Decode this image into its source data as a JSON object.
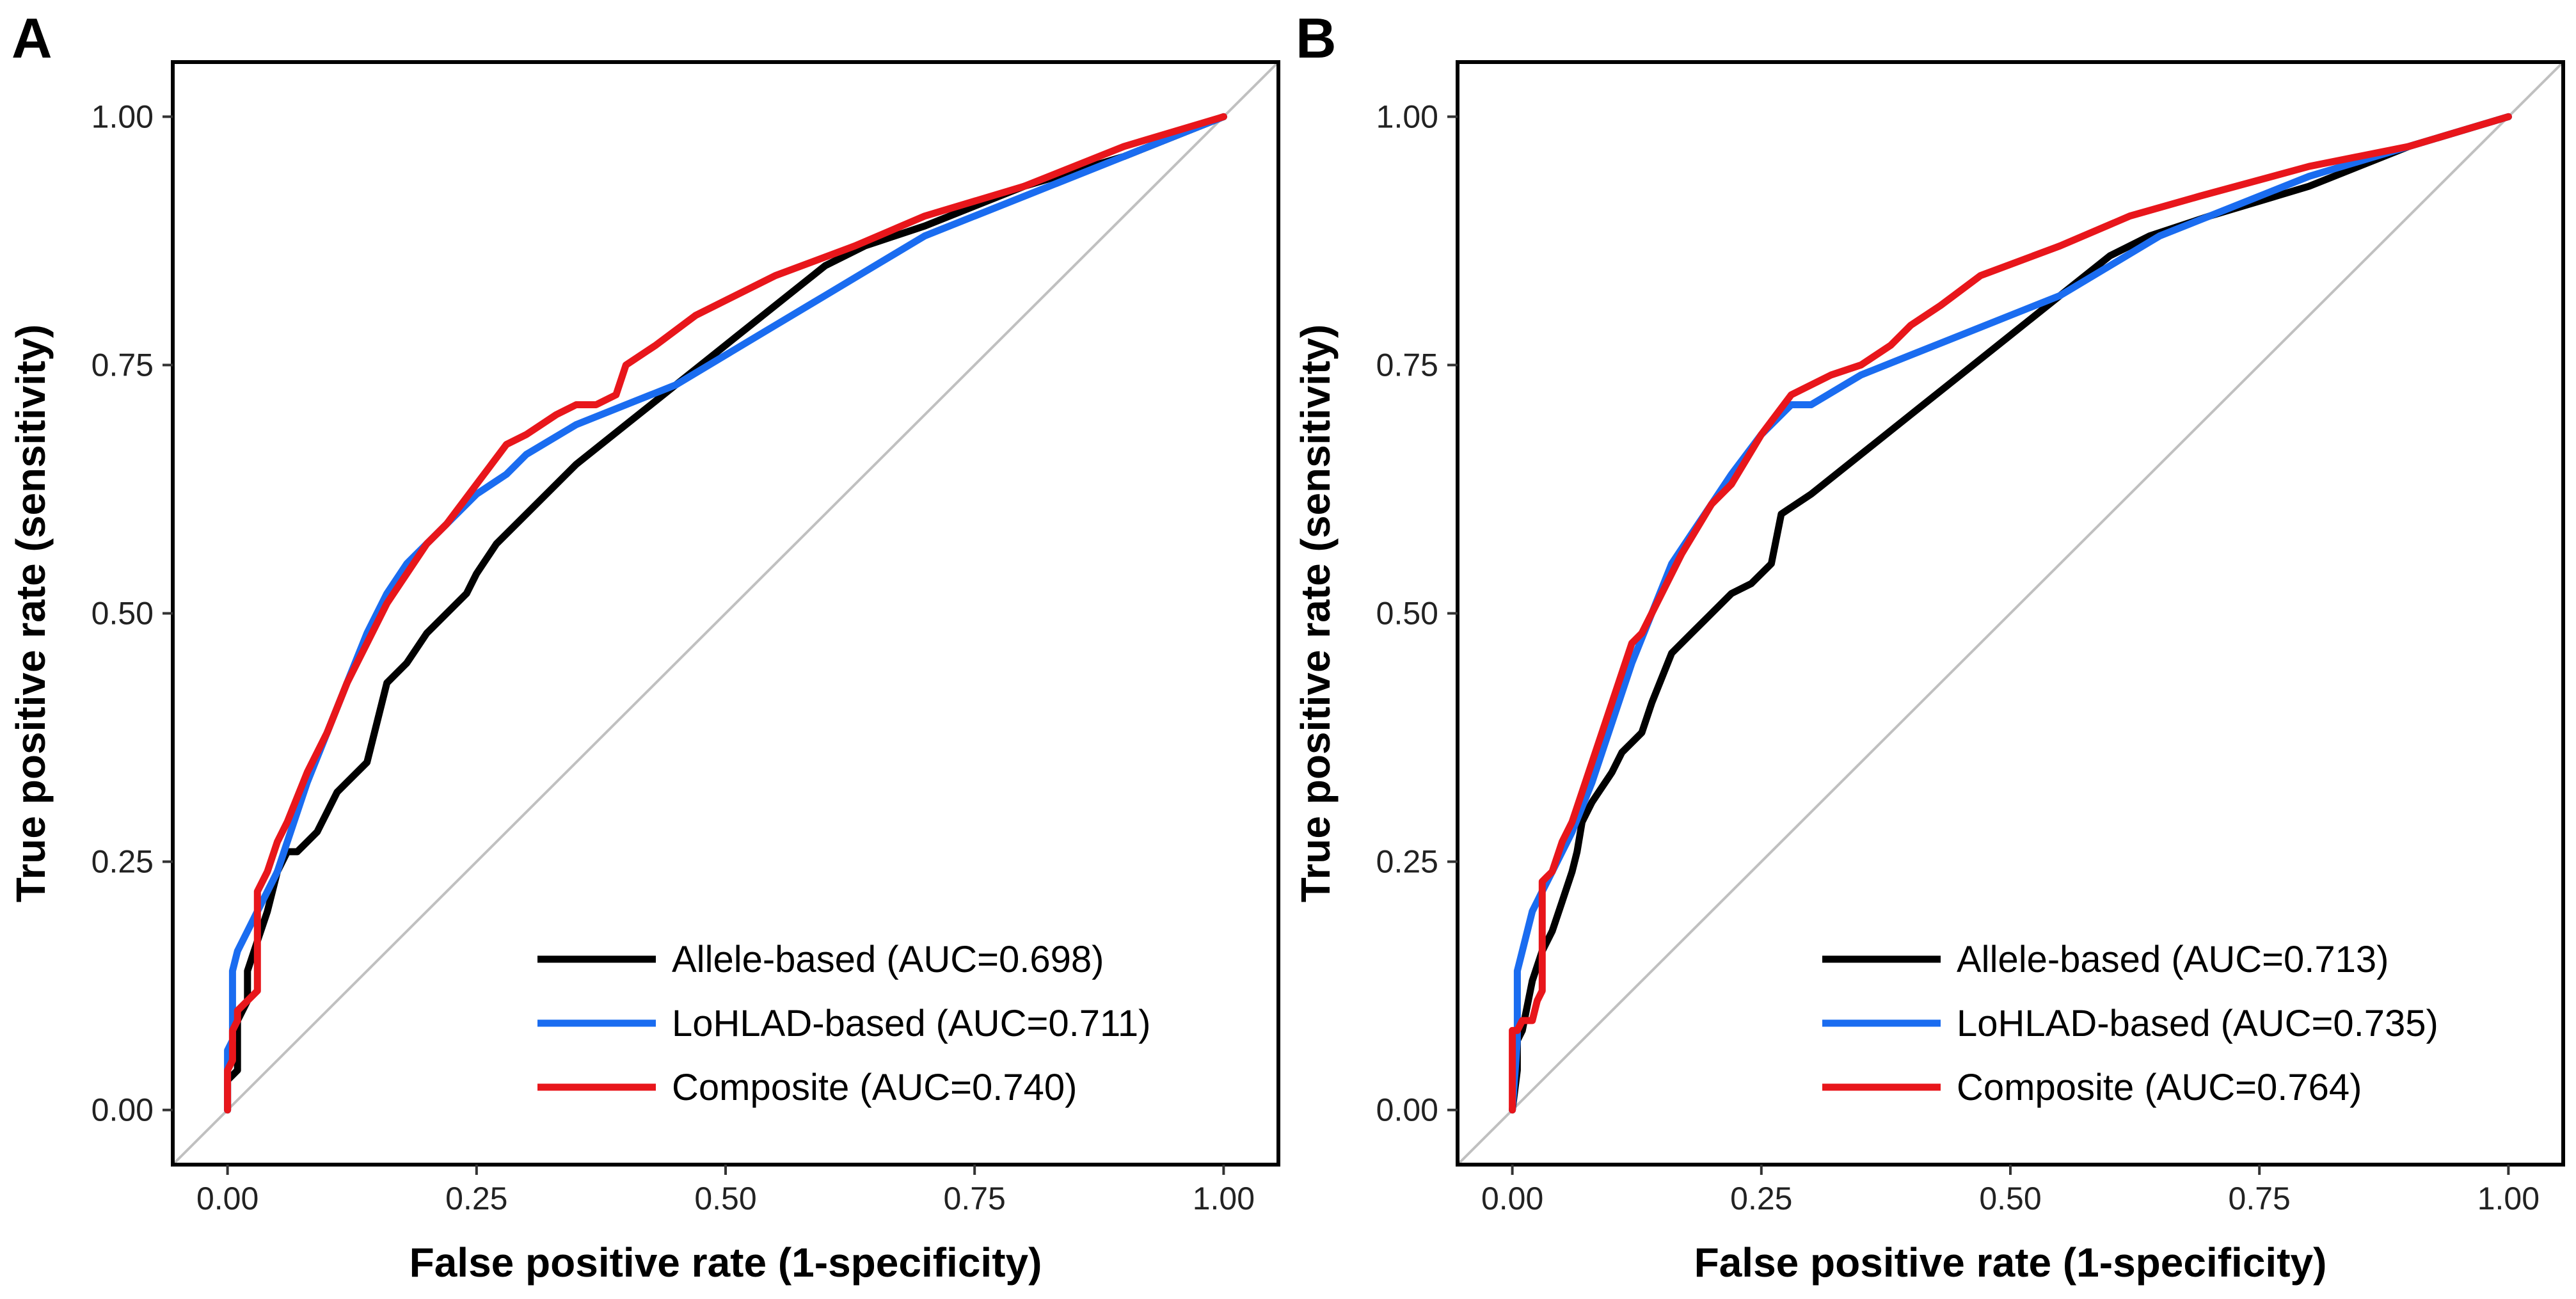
{
  "colors": {
    "allele": "#000000",
    "lohlad": "#1a6cf0",
    "composite": "#e8161b",
    "diagonal": "#c0c0c0",
    "frame": "#000000"
  },
  "chart_data": [
    {
      "panel": "A",
      "type": "line",
      "xlabel": "False positive rate (1-specificity)",
      "ylabel": "True positive rate (sensitivity)",
      "xlim": [
        -0.055,
        1.055
      ],
      "ylim": [
        -0.055,
        1.055
      ],
      "xticks": [
        "0.00",
        "0.25",
        "0.50",
        "0.75",
        "1.00"
      ],
      "yticks": [
        "0.00",
        "0.25",
        "0.50",
        "0.75",
        "1.00"
      ],
      "legend_position": "bottom-right",
      "reference_line": "diagonal",
      "series": [
        {
          "name": "Allele-based (AUC=0.698)",
          "color_key": "allele",
          "x": [
            0,
            0,
            0.01,
            0.01,
            0.02,
            0.02,
            0.03,
            0.04,
            0.05,
            0.06,
            0.07,
            0.08,
            0.09,
            0.1,
            0.11,
            0.12,
            0.14,
            0.16,
            0.18,
            0.2,
            0.22,
            0.24,
            0.25,
            0.27,
            0.3,
            0.35,
            0.4,
            0.45,
            0.5,
            0.55,
            0.6,
            0.64,
            0.7,
            0.8,
            0.9,
            1.0
          ],
          "y": [
            0,
            0.03,
            0.04,
            0.09,
            0.11,
            0.14,
            0.17,
            0.2,
            0.24,
            0.26,
            0.26,
            0.27,
            0.28,
            0.3,
            0.32,
            0.33,
            0.35,
            0.43,
            0.45,
            0.48,
            0.5,
            0.52,
            0.54,
            0.57,
            0.6,
            0.65,
            0.69,
            0.73,
            0.77,
            0.81,
            0.85,
            0.87,
            0.89,
            0.93,
            0.96,
            1.0
          ]
        },
        {
          "name": "LoHLAD-based (AUC=0.711)",
          "color_key": "lohlad",
          "x": [
            0,
            0,
            0.005,
            0.005,
            0.01,
            0.02,
            0.03,
            0.04,
            0.05,
            0.06,
            0.08,
            0.1,
            0.12,
            0.14,
            0.16,
            0.18,
            0.2,
            0.22,
            0.25,
            0.28,
            0.3,
            0.35,
            0.4,
            0.45,
            0.5,
            0.55,
            0.6,
            0.65,
            0.7,
            0.8,
            0.9,
            1.0
          ],
          "y": [
            0,
            0.06,
            0.07,
            0.14,
            0.16,
            0.18,
            0.2,
            0.22,
            0.24,
            0.27,
            0.33,
            0.38,
            0.43,
            0.48,
            0.52,
            0.55,
            0.57,
            0.59,
            0.62,
            0.64,
            0.66,
            0.69,
            0.71,
            0.73,
            0.76,
            0.79,
            0.82,
            0.85,
            0.88,
            0.92,
            0.96,
            1.0
          ]
        },
        {
          "name": "Composite (AUC=0.740)",
          "color_key": "composite",
          "x": [
            0,
            0,
            0.005,
            0.005,
            0.01,
            0.01,
            0.02,
            0.03,
            0.03,
            0.04,
            0.05,
            0.06,
            0.08,
            0.1,
            0.12,
            0.14,
            0.16,
            0.18,
            0.2,
            0.22,
            0.25,
            0.28,
            0.3,
            0.33,
            0.35,
            0.37,
            0.39,
            0.4,
            0.43,
            0.47,
            0.55,
            0.63,
            0.7,
            0.8,
            0.9,
            1.0
          ],
          "y": [
            0,
            0.04,
            0.05,
            0.08,
            0.09,
            0.1,
            0.11,
            0.12,
            0.22,
            0.24,
            0.27,
            0.29,
            0.34,
            0.38,
            0.43,
            0.47,
            0.51,
            0.54,
            0.57,
            0.59,
            0.63,
            0.67,
            0.68,
            0.7,
            0.71,
            0.71,
            0.72,
            0.75,
            0.77,
            0.8,
            0.84,
            0.87,
            0.9,
            0.93,
            0.97,
            1.0
          ]
        }
      ]
    },
    {
      "panel": "B",
      "type": "line",
      "xlabel": "False positive rate (1-specificity)",
      "ylabel": "True positive rate (sensitivity)",
      "xlim": [
        -0.055,
        1.055
      ],
      "ylim": [
        -0.055,
        1.055
      ],
      "xticks": [
        "0.00",
        "0.25",
        "0.50",
        "0.75",
        "1.00"
      ],
      "yticks": [
        "0.00",
        "0.25",
        "0.50",
        "0.75",
        "1.00"
      ],
      "legend_position": "bottom-right",
      "reference_line": "diagonal",
      "series": [
        {
          "name": "Allele-based (AUC=0.713)",
          "color_key": "allele",
          "x": [
            0,
            0.005,
            0.005,
            0.01,
            0.02,
            0.03,
            0.04,
            0.05,
            0.06,
            0.065,
            0.07,
            0.08,
            0.1,
            0.11,
            0.13,
            0.14,
            0.16,
            0.18,
            0.2,
            0.22,
            0.24,
            0.26,
            0.27,
            0.3,
            0.35,
            0.4,
            0.45,
            0.5,
            0.55,
            0.6,
            0.64,
            0.7,
            0.8,
            0.9,
            1.0
          ],
          "y": [
            0,
            0.04,
            0.07,
            0.08,
            0.13,
            0.16,
            0.18,
            0.21,
            0.24,
            0.26,
            0.29,
            0.31,
            0.34,
            0.36,
            0.38,
            0.41,
            0.46,
            0.48,
            0.5,
            0.52,
            0.53,
            0.55,
            0.6,
            0.62,
            0.66,
            0.7,
            0.74,
            0.78,
            0.82,
            0.86,
            0.88,
            0.9,
            0.93,
            0.97,
            1.0
          ]
        },
        {
          "name": "LoHLAD-based (AUC=0.735)",
          "color_key": "lohlad",
          "x": [
            0,
            0.005,
            0.005,
            0.01,
            0.02,
            0.03,
            0.04,
            0.06,
            0.08,
            0.1,
            0.12,
            0.14,
            0.16,
            0.18,
            0.2,
            0.22,
            0.25,
            0.28,
            0.3,
            0.35,
            0.4,
            0.45,
            0.5,
            0.55,
            0.6,
            0.65,
            0.7,
            0.8,
            0.9,
            1.0
          ],
          "y": [
            0,
            0.07,
            0.14,
            0.16,
            0.2,
            0.22,
            0.24,
            0.28,
            0.33,
            0.39,
            0.45,
            0.5,
            0.55,
            0.58,
            0.61,
            0.64,
            0.68,
            0.71,
            0.71,
            0.74,
            0.76,
            0.78,
            0.8,
            0.82,
            0.85,
            0.88,
            0.9,
            0.94,
            0.97,
            1.0
          ]
        },
        {
          "name": "Composite (AUC=0.764)",
          "color_key": "composite",
          "x": [
            0,
            0,
            0.005,
            0.01,
            0.02,
            0.025,
            0.03,
            0.03,
            0.04,
            0.05,
            0.06,
            0.08,
            0.1,
            0.12,
            0.13,
            0.15,
            0.17,
            0.2,
            0.22,
            0.25,
            0.28,
            0.3,
            0.32,
            0.35,
            0.38,
            0.4,
            0.43,
            0.47,
            0.55,
            0.62,
            0.69,
            0.8,
            0.9,
            1.0
          ],
          "y": [
            0,
            0.08,
            0.08,
            0.09,
            0.09,
            0.11,
            0.12,
            0.23,
            0.24,
            0.27,
            0.29,
            0.35,
            0.41,
            0.47,
            0.48,
            0.52,
            0.56,
            0.61,
            0.63,
            0.68,
            0.72,
            0.73,
            0.74,
            0.75,
            0.77,
            0.79,
            0.81,
            0.84,
            0.87,
            0.9,
            0.92,
            0.95,
            0.97,
            1.0
          ]
        }
      ]
    }
  ]
}
